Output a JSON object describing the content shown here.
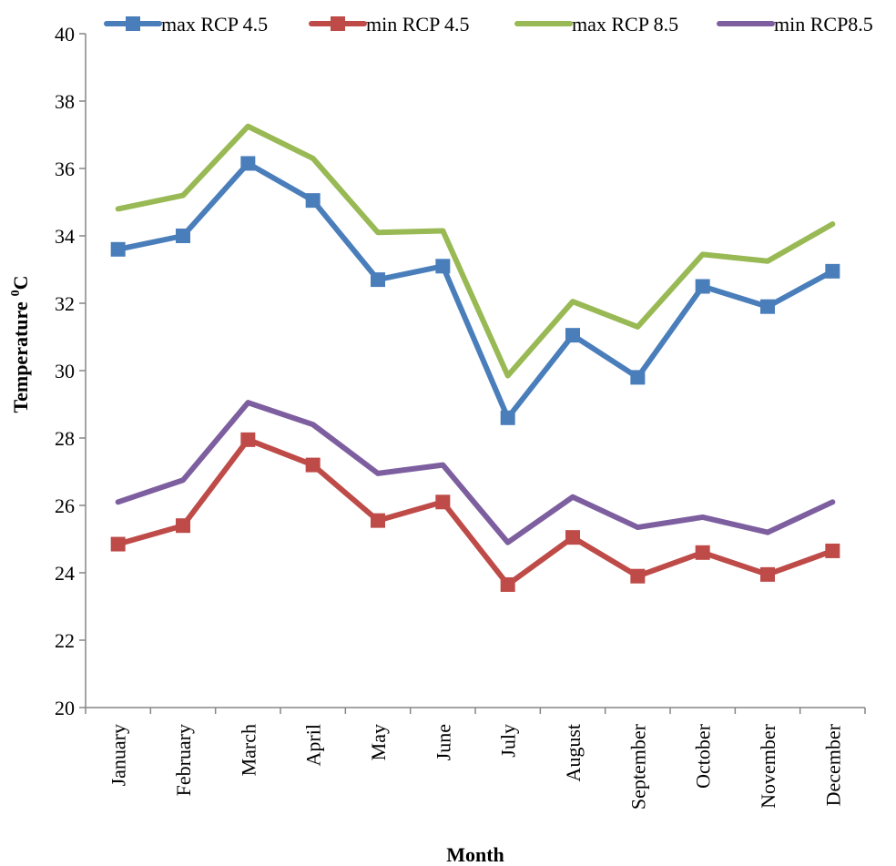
{
  "chart_data": {
    "type": "line",
    "title": "",
    "xlabel": "Month",
    "ylabel": "Temperature",
    "ylabel_sup": "0",
    "ylabel_unit": "C",
    "ylim": [
      20,
      40
    ],
    "ytick_step": 2,
    "grid": false,
    "legend_position": "top",
    "categories": [
      "January",
      "February",
      "March",
      "April",
      "May",
      "June",
      "July",
      "August",
      "September",
      "October",
      "November",
      "December"
    ],
    "series": [
      {
        "name": "max RCP 4.5",
        "color": "#4a7ebb",
        "marker": "square",
        "values": [
          33.6,
          34.0,
          36.15,
          35.05,
          32.7,
          33.1,
          28.6,
          31.05,
          29.8,
          32.5,
          31.9,
          32.95
        ]
      },
      {
        "name": "min RCP 4.5",
        "color": "#be4b48",
        "marker": "square",
        "values": [
          24.85,
          25.4,
          27.95,
          27.2,
          25.55,
          26.1,
          23.65,
          25.05,
          23.9,
          24.6,
          23.95,
          24.65
        ]
      },
      {
        "name": "max RCP 8.5",
        "color": "#98b954",
        "marker": "none",
        "values": [
          34.8,
          35.2,
          37.25,
          36.3,
          34.1,
          34.15,
          29.85,
          32.05,
          31.3,
          33.45,
          33.25,
          34.35
        ]
      },
      {
        "name": "min RCP8.5",
        "color": "#7d5fa0",
        "marker": "none",
        "values": [
          26.1,
          26.75,
          29.05,
          28.4,
          26.95,
          27.2,
          24.9,
          26.25,
          25.35,
          25.65,
          25.2,
          26.1
        ]
      }
    ]
  }
}
